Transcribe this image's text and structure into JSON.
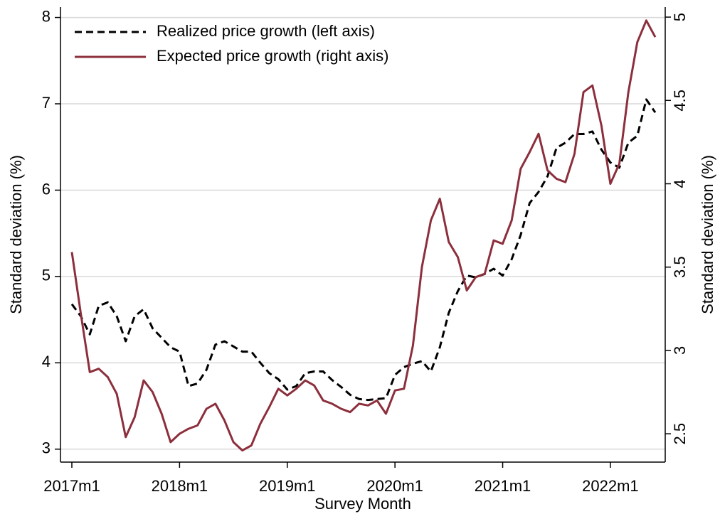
{
  "chart_data": {
    "type": "line",
    "xlabel": "Survey Month",
    "ylabel": "Standard deviation (%)",
    "y2label": "Standard deviation (%)",
    "categories": [
      "2017m1",
      null,
      null,
      null,
      null,
      null,
      null,
      null,
      null,
      null,
      null,
      null,
      "2018m1",
      null,
      null,
      null,
      null,
      null,
      null,
      null,
      null,
      null,
      null,
      null,
      "2019m1",
      null,
      null,
      null,
      null,
      null,
      null,
      null,
      null,
      null,
      null,
      null,
      "2020m1",
      null,
      null,
      null,
      null,
      null,
      null,
      null,
      null,
      null,
      null,
      null,
      "2021m1",
      null,
      null,
      null,
      null,
      null,
      null,
      null,
      null,
      null,
      null,
      null,
      "2022m1",
      null,
      null,
      null,
      null,
      null
    ],
    "series": [
      {
        "name": "Realized price growth (left axis)",
        "color": "#000000",
        "dash": true,
        "values": [
          4.68,
          4.54,
          4.33,
          4.66,
          4.7,
          4.54,
          4.25,
          4.54,
          4.62,
          4.4,
          4.29,
          4.18,
          4.13,
          3.73,
          3.76,
          3.92,
          4.21,
          4.25,
          4.19,
          4.13,
          4.13,
          4.0,
          3.88,
          3.81,
          3.69,
          3.73,
          3.88,
          3.9,
          3.9,
          3.8,
          3.72,
          3.63,
          3.58,
          3.57,
          3.58,
          3.59,
          3.86,
          3.95,
          3.99,
          4.02,
          3.9,
          4.18,
          4.58,
          4.83,
          5.01,
          4.99,
          5.03,
          5.09,
          5.01,
          5.2,
          5.48,
          5.85,
          5.98,
          6.16,
          6.49,
          6.55,
          6.65,
          6.65,
          6.68,
          6.47,
          6.32,
          6.26,
          6.55,
          6.63,
          7.05,
          6.9
        ]
      },
      {
        "name": "Expected price growth (right axis)",
        "color": "#8c2f3c",
        "dash": false,
        "axis": "y2",
        "values": [
          3.59,
          3.22,
          2.87,
          2.89,
          2.84,
          2.74,
          2.48,
          2.6,
          2.82,
          2.75,
          2.62,
          2.45,
          2.5,
          2.53,
          2.55,
          2.65,
          2.68,
          2.58,
          2.45,
          2.4,
          2.43,
          2.56,
          2.66,
          2.77,
          2.73,
          2.77,
          2.82,
          2.79,
          2.7,
          2.68,
          2.65,
          2.63,
          2.68,
          2.67,
          2.7,
          2.62,
          2.76,
          2.77,
          3.03,
          3.5,
          3.78,
          3.91,
          3.65,
          3.56,
          3.36,
          3.44,
          3.46,
          3.66,
          3.64,
          3.78,
          4.09,
          4.19,
          4.3,
          4.08,
          4.03,
          4.01,
          4.18,
          4.55,
          4.59,
          4.35,
          4.0,
          4.12,
          4.55,
          4.85,
          4.98,
          4.88
        ]
      }
    ],
    "ylim": [
      2.85,
      8.12
    ],
    "yticks": [
      3,
      4,
      5,
      6,
      7,
      8
    ],
    "y2lim": [
      2.33,
      5.06
    ],
    "y2ticks": [
      2.5,
      3,
      3.5,
      4,
      4.5,
      5
    ],
    "grid": true,
    "legend": "top-left"
  }
}
